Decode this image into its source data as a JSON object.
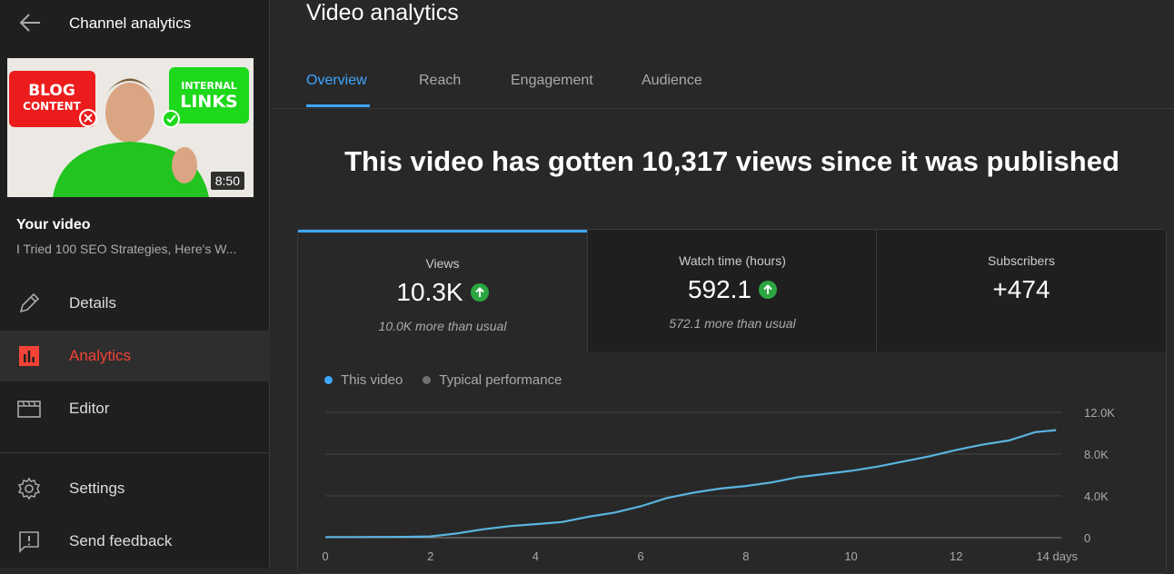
{
  "sidebar": {
    "title": "Channel analytics",
    "thumbnail": {
      "duration": "8:50",
      "left_badge": [
        "BLOG",
        "CONTENT"
      ],
      "right_badge": [
        "INTERNAL",
        "LINKS"
      ]
    },
    "your_video_label": "Your video",
    "video_title": "I Tried 100 SEO Strategies, Here's W...",
    "items": [
      {
        "label": "Details",
        "icon": "pencil-icon",
        "active": false
      },
      {
        "label": "Analytics",
        "icon": "analytics-icon",
        "active": true
      },
      {
        "label": "Editor",
        "icon": "editor-icon",
        "active": false
      }
    ],
    "bottom_items": [
      {
        "label": "Settings",
        "icon": "gear-icon"
      },
      {
        "label": "Send feedback",
        "icon": "feedback-icon"
      }
    ]
  },
  "main": {
    "title": "Video analytics",
    "tabs": [
      {
        "label": "Overview",
        "active": true
      },
      {
        "label": "Reach",
        "active": false
      },
      {
        "label": "Engagement",
        "active": false
      },
      {
        "label": "Audience",
        "active": false
      }
    ],
    "headline": "This video has gotten 10,317 views since it was published",
    "metrics": [
      {
        "label": "Views",
        "value": "10.3K",
        "note": "10.0K more than usual",
        "trend": "up",
        "active": true
      },
      {
        "label": "Watch time (hours)",
        "value": "592.1",
        "note": "572.1 more than usual",
        "trend": "up",
        "active": false
      },
      {
        "label": "Subscribers",
        "value": "+474",
        "note": "",
        "trend": "none",
        "active": false
      }
    ],
    "legend": [
      {
        "label": "This video",
        "color": "#3ea6ff"
      },
      {
        "label": "Typical performance",
        "color": "#717171"
      }
    ]
  },
  "colors": {
    "accent": "#3ea6ff",
    "active_nav": "#f44336",
    "trend_up": "#2ba640",
    "line": "#5ab4e0"
  },
  "chart_data": {
    "type": "line",
    "x_tick_labels": [
      "0",
      "2",
      "4",
      "6",
      "8",
      "10",
      "12",
      "14 days"
    ],
    "x_ticks": [
      0,
      2,
      4,
      6,
      8,
      10,
      12,
      14
    ],
    "y_tick_labels": [
      "12.0K",
      "8.0K",
      "4.0K",
      "0"
    ],
    "y_ticks": [
      12000,
      8000,
      4000,
      0
    ],
    "xlim": [
      0,
      14
    ],
    "ylim": [
      0,
      12000
    ],
    "grid": true,
    "series": [
      {
        "name": "This video",
        "x": [
          0,
          0.5,
          1,
          1.5,
          2,
          2.5,
          3,
          3.5,
          4,
          4.5,
          5,
          5.5,
          6,
          6.5,
          7,
          7.5,
          8,
          8.5,
          9,
          9.5,
          10,
          10.5,
          11,
          11.5,
          12,
          12.5,
          13,
          13.5,
          13.9
        ],
        "y": [
          50,
          60,
          70,
          80,
          120,
          400,
          800,
          1100,
          1300,
          1500,
          2000,
          2400,
          3000,
          3800,
          4300,
          4700,
          4950,
          5300,
          5800,
          6100,
          6400,
          6800,
          7300,
          7800,
          8400,
          8900,
          9300,
          10100,
          10300
        ]
      }
    ]
  }
}
